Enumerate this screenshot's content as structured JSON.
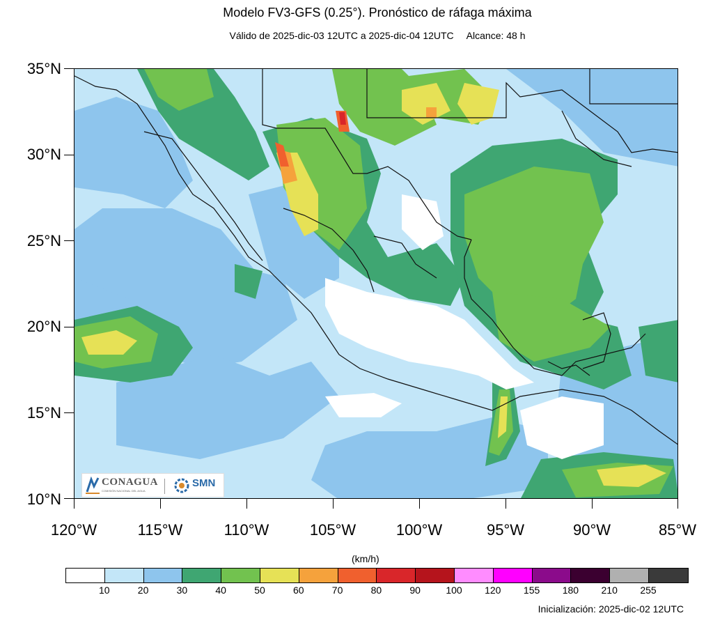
{
  "title": "Modelo FV3-GFS (0.25°). Pronóstico de ráfaga máxima",
  "subtitle": {
    "valid": "Válido de 2025-dic-03 12UTC a 2025-dic-04 12UTC",
    "range": "Alcance: 48 h"
  },
  "map": {
    "lat_labels": [
      "35°N",
      "30°N",
      "25°N",
      "20°N",
      "15°N",
      "10°N"
    ],
    "lon_labels": [
      "120°W",
      "115°W",
      "110°W",
      "105°W",
      "100°W",
      "95°W",
      "90°W",
      "85°W"
    ],
    "lat_range": [
      10,
      35
    ],
    "lon_range": [
      -120,
      -85
    ]
  },
  "logos": {
    "conagua": "CONAGUA",
    "conagua_sub": "COMISIÓN NACIONAL DEL AGUA",
    "smn": "SMN"
  },
  "colorbar": {
    "units": "(km/h)",
    "labels": [
      "10",
      "20",
      "30",
      "40",
      "50",
      "60",
      "70",
      "80",
      "90",
      "100",
      "120",
      "155",
      "180",
      "210",
      "255"
    ],
    "colors": [
      "#ffffff",
      "#c3e6f8",
      "#8ec5ed",
      "#3fa672",
      "#72c24f",
      "#e6e156",
      "#f5a23c",
      "#f0602e",
      "#d9262a",
      "#b5141c",
      "#ff8cff",
      "#ff00ff",
      "#8b0b8b",
      "#3b0030",
      "#b0b0b0",
      "#3a3a3a"
    ]
  },
  "init": "Inicialización: 2025-dic-02 12UTC"
}
